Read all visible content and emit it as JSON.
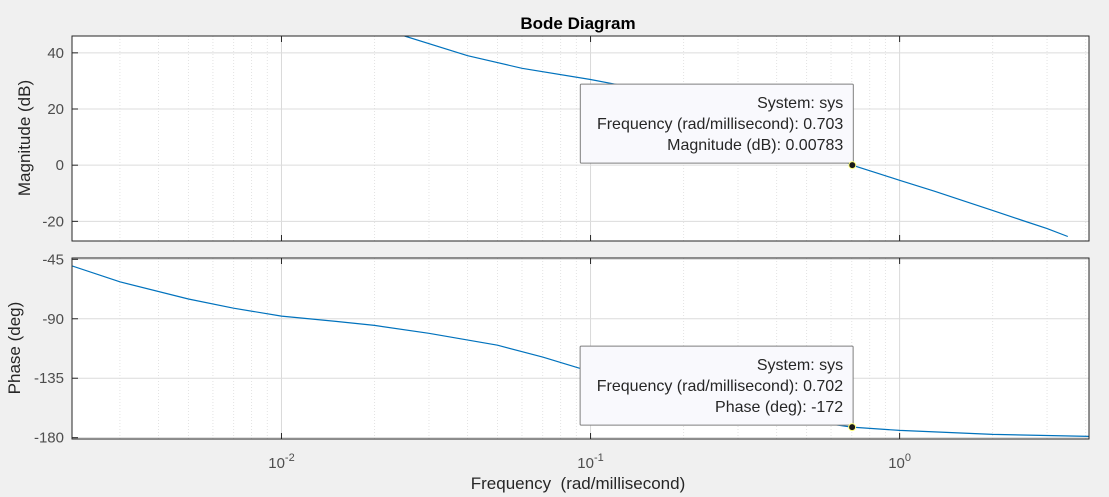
{
  "chart_data": {
    "type": "line",
    "title": "Bode Diagram",
    "xlabel": "Frequency  (rad/millisecond)",
    "x_scale": "log",
    "xlim": [
      0.0021,
      4.1
    ],
    "x_ticks": [
      {
        "value": 0.01,
        "base": "10",
        "exp": "-2"
      },
      {
        "value": 0.1,
        "base": "10",
        "exp": "-1"
      },
      {
        "value": 1,
        "base": "10",
        "exp": "0"
      }
    ],
    "grid": true,
    "panels": [
      {
        "name": "magnitude",
        "ylabel": "Magnitude (dB)",
        "ylim": [
          -27,
          46
        ],
        "y_ticks": [
          -20,
          0,
          20,
          40
        ],
        "y_tick_labels": [
          "-20",
          "0",
          "20",
          "40"
        ],
        "series": [
          {
            "color": "#0072bd",
            "x": [
              0.025,
              0.04,
              0.06,
              0.1,
              0.15,
              0.2,
              0.3,
              0.4,
              0.5,
              0.6,
              0.703,
              0.85,
              1.0,
              1.3,
              1.6,
              2.0,
              2.5,
              3.0,
              3.5
            ],
            "y": [
              46,
              39,
              34.5,
              30.5,
              26.8,
              23.4,
              17.3,
              12.3,
              7.8,
              3.7,
              0.0078,
              -2.9,
              -5.4,
              -9.3,
              -12.6,
              -16.1,
              -19.7,
              -22.6,
              -25.4
            ]
          }
        ],
        "datatip": {
          "x": 0.703,
          "y": 0.00783,
          "lines": [
            "System: sys",
            "Frequency (rad/millisecond): 0.703",
            "Magnitude (dB): 0.00783"
          ]
        }
      },
      {
        "name": "phase",
        "ylabel": "Phase (deg)",
        "ylim": [
          -181,
          -44
        ],
        "y_ticks": [
          -180,
          -135,
          -90,
          -45
        ],
        "y_tick_labels": [
          "-180",
          "-135",
          "-90",
          "-45"
        ],
        "series": [
          {
            "color": "#0072bd",
            "x": [
              0.0021,
              0.003,
              0.005,
              0.007,
              0.01,
              0.015,
              0.02,
              0.03,
              0.05,
              0.07,
              0.1,
              0.15,
              0.2,
              0.3,
              0.5,
              0.7,
              1.0,
              2.0,
              4.1
            ],
            "y": [
              -50,
              -62,
              -75,
              -82,
              -88,
              -92,
              -95,
              -101,
              -110,
              -119,
              -130,
              -142,
              -150,
              -159,
              -167,
              -172,
              -174.5,
              -177.5,
              -179
            ]
          }
        ],
        "datatip": {
          "x": 0.702,
          "y": -172,
          "lines": [
            "System: sys",
            "Frequency (rad/millisecond): 0.702",
            "Phase (deg): -172"
          ]
        }
      }
    ]
  }
}
